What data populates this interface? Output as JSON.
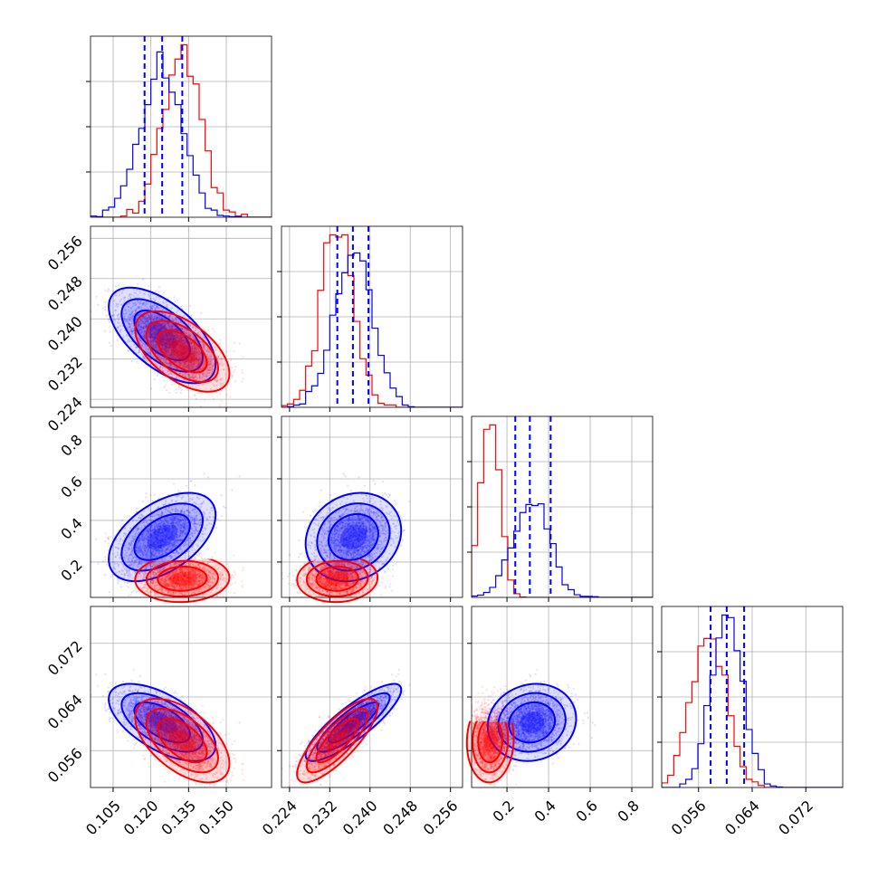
{
  "chart_data": {
    "type": "corner",
    "colors": {
      "model_a": "#0000ff",
      "model_b": "#ff0000"
    },
    "series": [
      {
        "color": "#0000ff",
        "mean": [
          0.1245,
          0.2367,
          0.32,
          0.0602
        ],
        "sd": [
          0.0085,
          0.0038,
          0.085,
          0.0023
        ],
        "corr": [
          [
            1,
            -0.6,
            0.5,
            -0.6
          ],
          [
            -0.6,
            1,
            0.15,
            0.85
          ],
          [
            0.5,
            0.15,
            1,
            0.1
          ],
          [
            -0.6,
            0.85,
            0.1,
            1
          ]
        ]
      },
      {
        "color": "#ff0000",
        "mean": [
          0.1325,
          0.2335,
          0.12,
          0.0575
        ],
        "sd": [
          0.0075,
          0.0032,
          0.045,
          0.0025
        ],
        "corr": [
          [
            1,
            -0.55,
            0.05,
            -0.55
          ],
          [
            -0.55,
            1,
            0.05,
            0.8
          ],
          [
            0.05,
            0.05,
            1,
            0.05
          ],
          [
            -0.55,
            0.8,
            0.05,
            1
          ]
        ]
      }
    ],
    "quantile_lines": [
      [
        0.1175,
        0.1245,
        0.1325
      ],
      [
        0.2335,
        0.2366,
        0.2397
      ],
      [
        0.24,
        0.31,
        0.41
      ],
      [
        0.0578,
        0.0602,
        0.0628
      ]
    ],
    "params": [
      {
        "range": [
          0.096,
          0.168
        ],
        "ticks": [
          0.105,
          0.12,
          0.135,
          0.15
        ],
        "tick_labels": [
          "0.105",
          "0.120",
          "0.135",
          "0.150"
        ]
      },
      {
        "range": [
          0.2224,
          0.2584
        ],
        "ticks": [
          0.224,
          0.232,
          0.24,
          0.248,
          0.256
        ],
        "tick_labels": [
          "0.224",
          "0.232",
          "0.240",
          "0.248",
          "0.256"
        ]
      },
      {
        "range": [
          0.03,
          0.9
        ],
        "ticks": [
          0.2,
          0.4,
          0.6,
          0.8
        ],
        "tick_labels": [
          "0.2",
          "0.4",
          "0.6",
          "0.8"
        ]
      },
      {
        "range": [
          0.0505,
          0.0775
        ],
        "ticks": [
          0.056,
          0.064,
          0.072
        ],
        "tick_labels": [
          "0.056",
          "0.064",
          "0.072"
        ]
      }
    ]
  }
}
